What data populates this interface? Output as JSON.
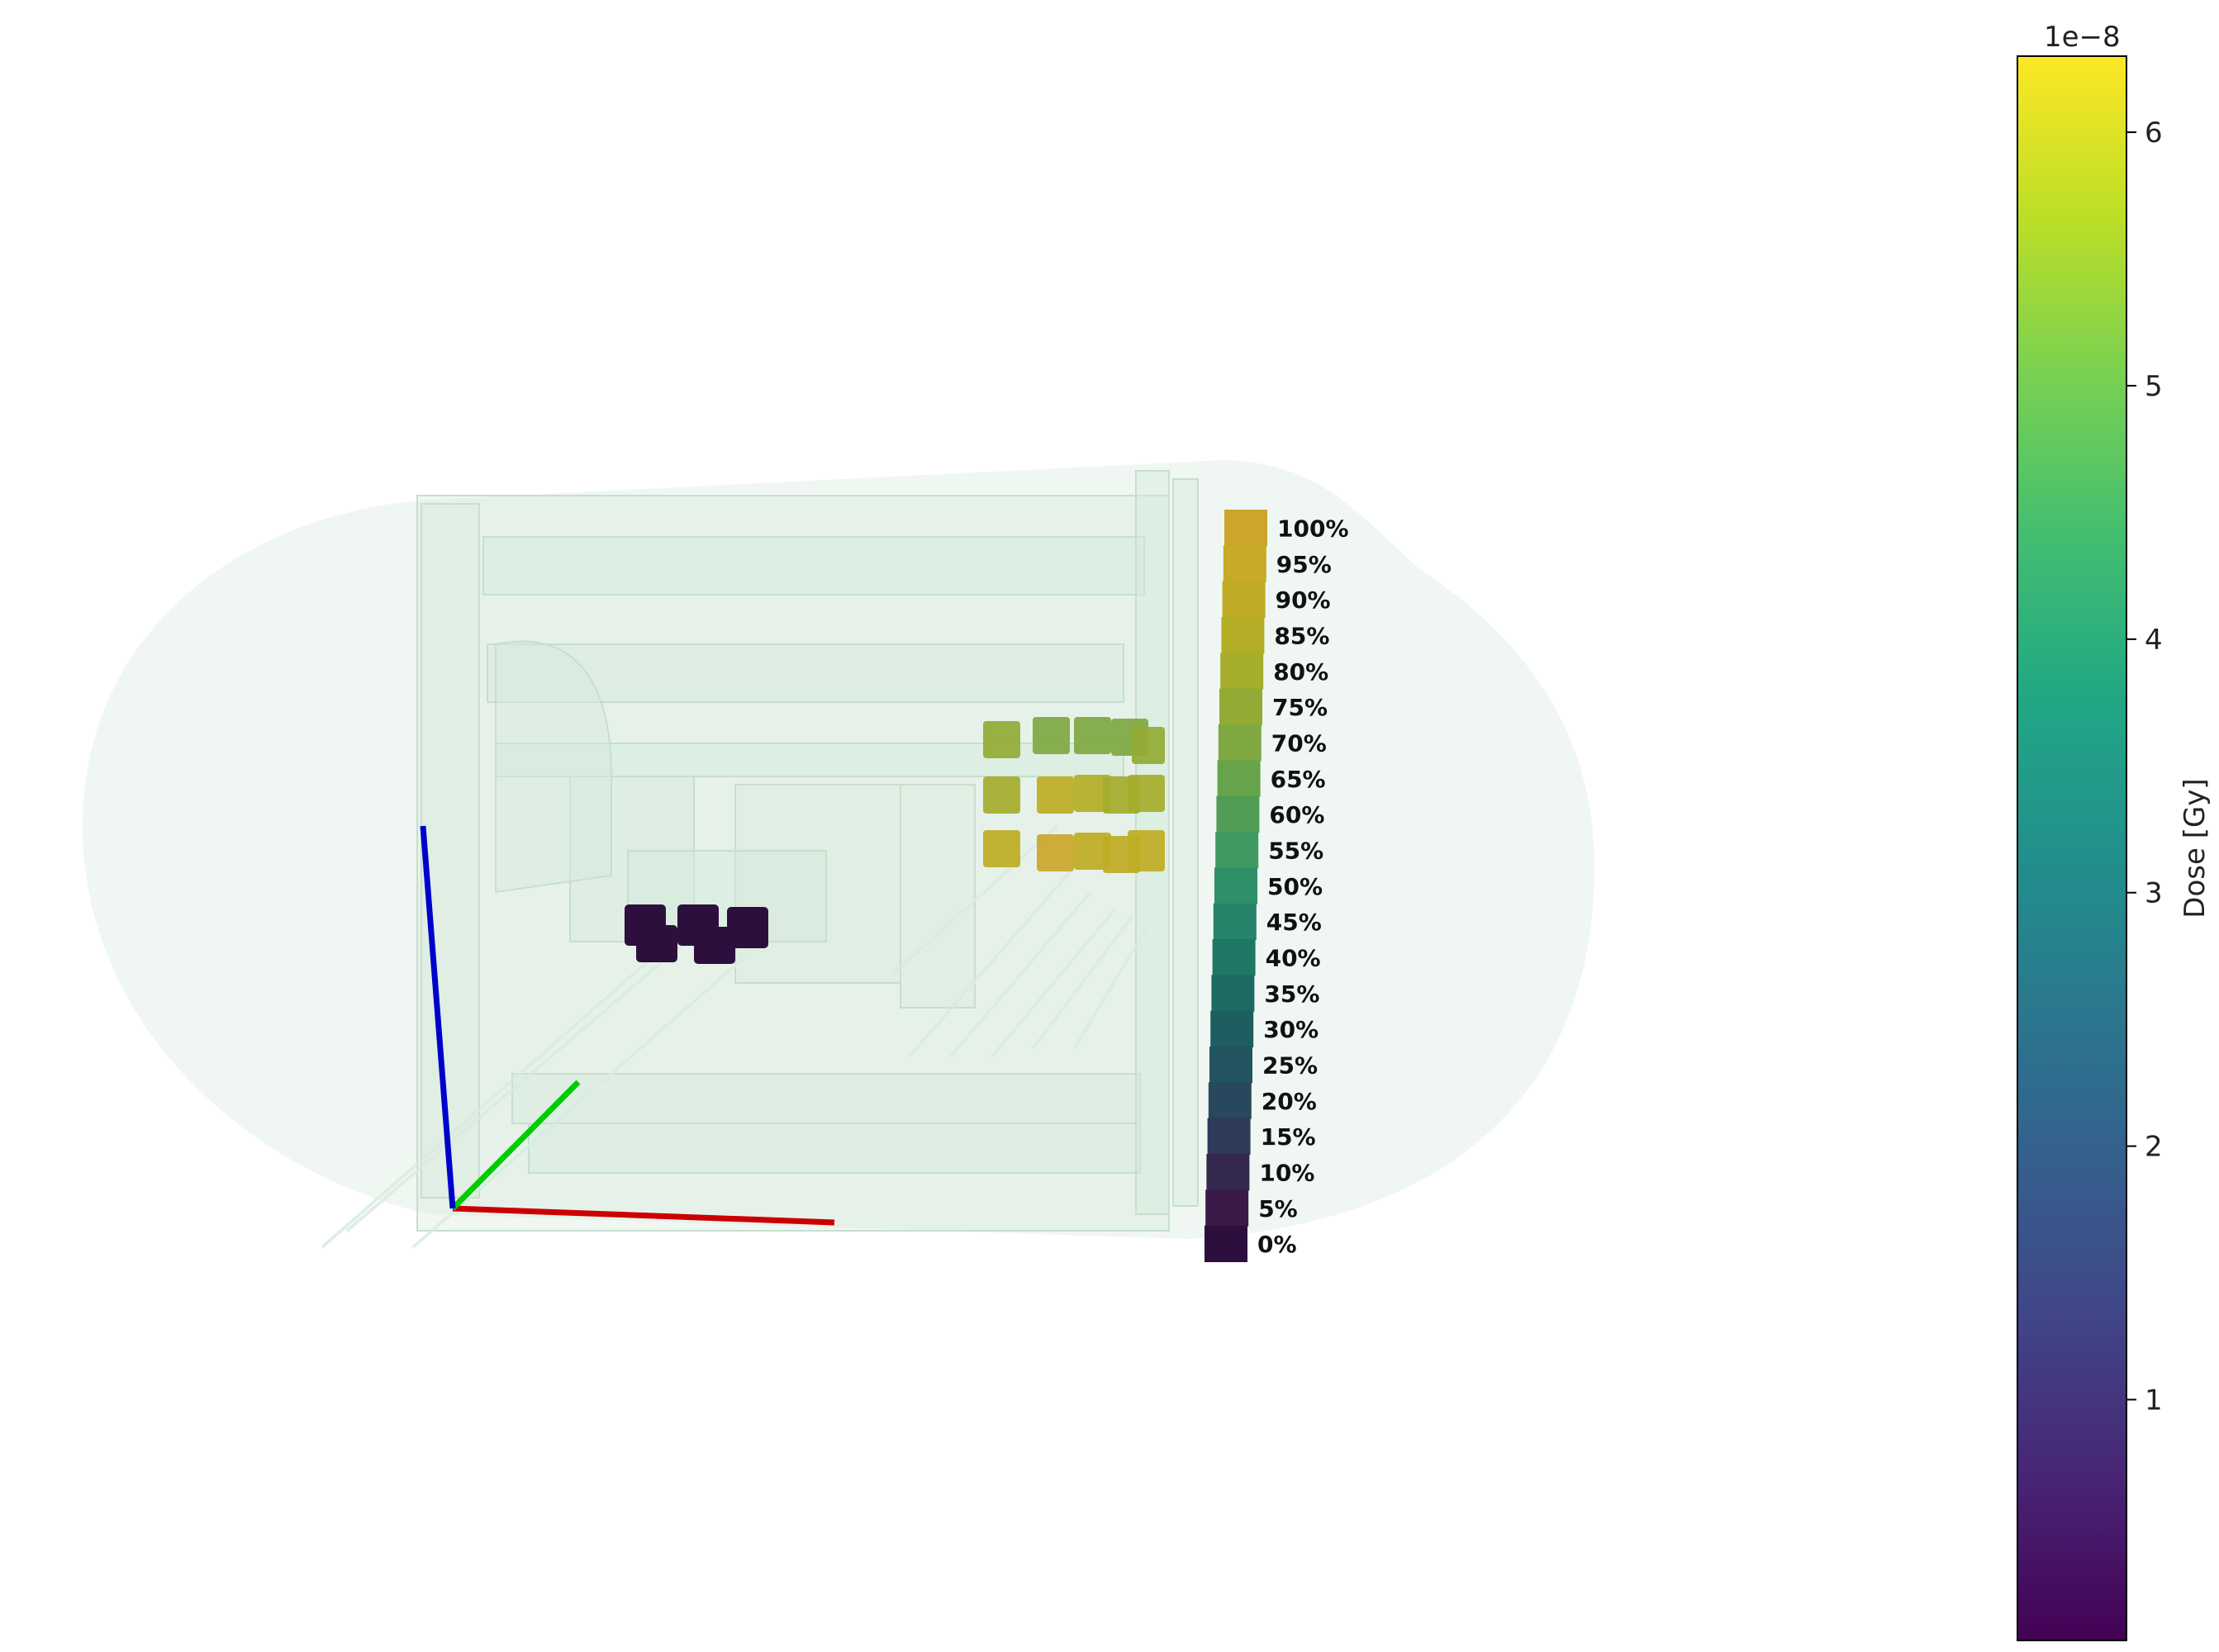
{
  "percent_legend": {
    "labels": [
      "100%",
      "95%",
      "90%",
      "85%",
      "80%",
      "75%",
      "70%",
      "65%",
      "60%",
      "55%",
      "50%",
      "45%",
      "40%",
      "35%",
      "30%",
      "25%",
      "20%",
      "15%",
      "10%",
      "5%",
      "0%"
    ]
  },
  "colorbar": {
    "label": "Dose [Gy]",
    "exponent": "1e−8",
    "ticks": [
      "1",
      "2",
      "3",
      "4",
      "5",
      "6"
    ],
    "tick_values": [
      1,
      2,
      3,
      4,
      5,
      6
    ],
    "min": 0.05,
    "max": 6.3,
    "colormap": "viridis"
  },
  "axes_triad": {
    "x_color": "#cc0000",
    "y_color": "#00cc00",
    "z_color": "#0000cc"
  },
  "dose_voxels": {
    "low_cluster_relative_dose": [
      0.0,
      0.0,
      0.0,
      0.0,
      0.0
    ],
    "high_cluster_relative_dose": [
      0.75,
      0.7,
      0.7,
      0.72,
      0.75,
      0.82,
      0.9,
      0.85,
      0.8,
      0.82,
      0.88,
      0.98,
      0.92,
      0.9,
      0.88
    ]
  }
}
